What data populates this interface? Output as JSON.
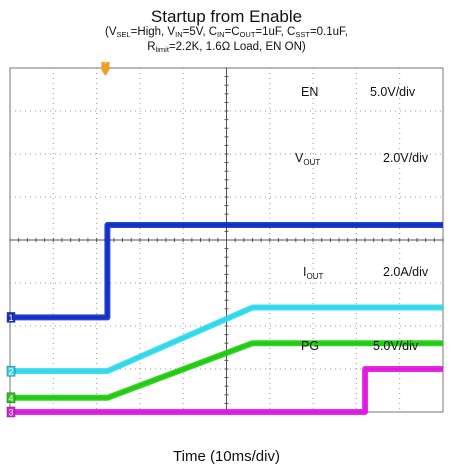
{
  "title": "Startup from Enable",
  "subtitle_line1": [
    {
      "t": "(V"
    },
    {
      "s": "SEL"
    },
    {
      "t": "=High, V"
    },
    {
      "s": "IN"
    },
    {
      "t": "=5V, C"
    },
    {
      "s": "IN"
    },
    {
      "t": "=C"
    },
    {
      "s": "OUT"
    },
    {
      "t": "=1uF, C"
    },
    {
      "s": "SST"
    },
    {
      "t": "=0.1uF,"
    }
  ],
  "subtitle_line2": [
    {
      "t": "R"
    },
    {
      "s": "limit"
    },
    {
      "t": "=2.2K, 1.6Ω Load, EN ON)"
    }
  ],
  "chart_data": {
    "type": "line",
    "xlabel": "Time (10ms/div)",
    "x_unit_per_div": "10ms",
    "divisions": {
      "x": 10,
      "y": 8
    },
    "grid": true,
    "trigger_marker": "T",
    "series": [
      {
        "name": "EN",
        "channel": "1",
        "color": "#1030c8",
        "scale": "5.0V/div",
        "points": [
          [
            0,
            2.2
          ],
          [
            2.25,
            2.2
          ],
          [
            2.25,
            4.35
          ],
          [
            10,
            4.35
          ]
        ]
      },
      {
        "name": "VOUT",
        "channel": "2",
        "color": "#30d8ec",
        "scale": "2.0V/div",
        "points": [
          [
            0,
            0.95
          ],
          [
            2.25,
            0.95
          ],
          [
            5.6,
            2.43
          ],
          [
            10,
            2.43
          ]
        ]
      },
      {
        "name": "IOUT",
        "channel": "4",
        "color": "#20cc10",
        "scale": "2.0A/div",
        "points": [
          [
            0,
            0.33
          ],
          [
            2.25,
            0.33
          ],
          [
            5.6,
            1.6
          ],
          [
            10,
            1.6
          ]
        ]
      },
      {
        "name": "PG",
        "channel": "3",
        "color": "#e018e0",
        "scale": "5.0V/div",
        "points": [
          [
            0,
            0
          ],
          [
            8.2,
            0
          ],
          [
            8.2,
            1.0
          ],
          [
            10,
            1.0
          ]
        ]
      }
    ],
    "labels": [
      {
        "name_main": "EN",
        "name_sub": "",
        "scale": "5.0V/div"
      },
      {
        "name_main": "V",
        "name_sub": "OUT",
        "scale": "2.0V/div"
      },
      {
        "name_main": "I",
        "name_sub": "OUT",
        "scale": "2.0A/div"
      },
      {
        "name_main": "PG",
        "name_sub": "",
        "scale": "5.0V/div"
      }
    ]
  }
}
